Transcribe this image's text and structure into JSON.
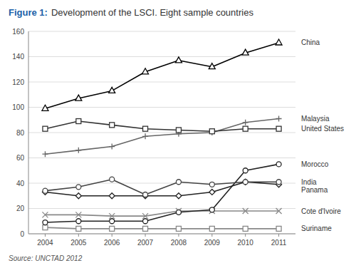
{
  "chart_data": {
    "type": "line",
    "title": "Figure 1:",
    "subtitle": "Development of the LSCI. Eight sample countries",
    "source": "Source: UNCTAD 2012",
    "x": [
      2004,
      2005,
      2006,
      2007,
      2008,
      2009,
      2010,
      2011
    ],
    "series": [
      {
        "name": "China",
        "color": "#000000",
        "marker": "triangle",
        "values": [
          99,
          107,
          113,
          128,
          137,
          132,
          143,
          151
        ]
      },
      {
        "name": "United States",
        "color": "#333333",
        "marker": "square",
        "values": [
          83,
          89,
          86,
          83,
          82,
          81,
          83,
          83
        ]
      },
      {
        "name": "Malaysia",
        "color": "#666666",
        "marker": "plus",
        "values": [
          63,
          66,
          69,
          77,
          79,
          80,
          88,
          91
        ]
      },
      {
        "name": "India",
        "color": "#444444",
        "marker": "circle",
        "values": [
          34,
          37,
          43,
          31,
          41,
          39,
          41,
          41
        ]
      },
      {
        "name": "Panama",
        "color": "#222222",
        "marker": "diamond",
        "values": [
          33,
          30,
          30,
          30,
          30,
          33,
          41,
          39
        ]
      },
      {
        "name": "Morocco",
        "color": "#222222",
        "marker": "circle",
        "values": [
          9,
          10,
          10,
          10,
          17,
          19,
          50,
          55
        ]
      },
      {
        "name": "Cote d'Ivoire",
        "color": "#888888",
        "marker": "x",
        "values": [
          15,
          15,
          14,
          14,
          18,
          18,
          18,
          18
        ]
      },
      {
        "name": "Suriname",
        "color": "#888888",
        "marker": "square",
        "values": [
          5,
          4,
          4,
          4,
          4,
          4,
          4,
          4
        ]
      }
    ],
    "xlim": [
      2003.5,
      2011.5
    ],
    "xticks": [
      2004,
      2005,
      2006,
      2007,
      2008,
      2009,
      2010,
      2011
    ],
    "ylim": [
      0,
      160
    ],
    "yticks": [
      0,
      20,
      40,
      60,
      80,
      100,
      120,
      140,
      160
    ],
    "grid": true
  }
}
